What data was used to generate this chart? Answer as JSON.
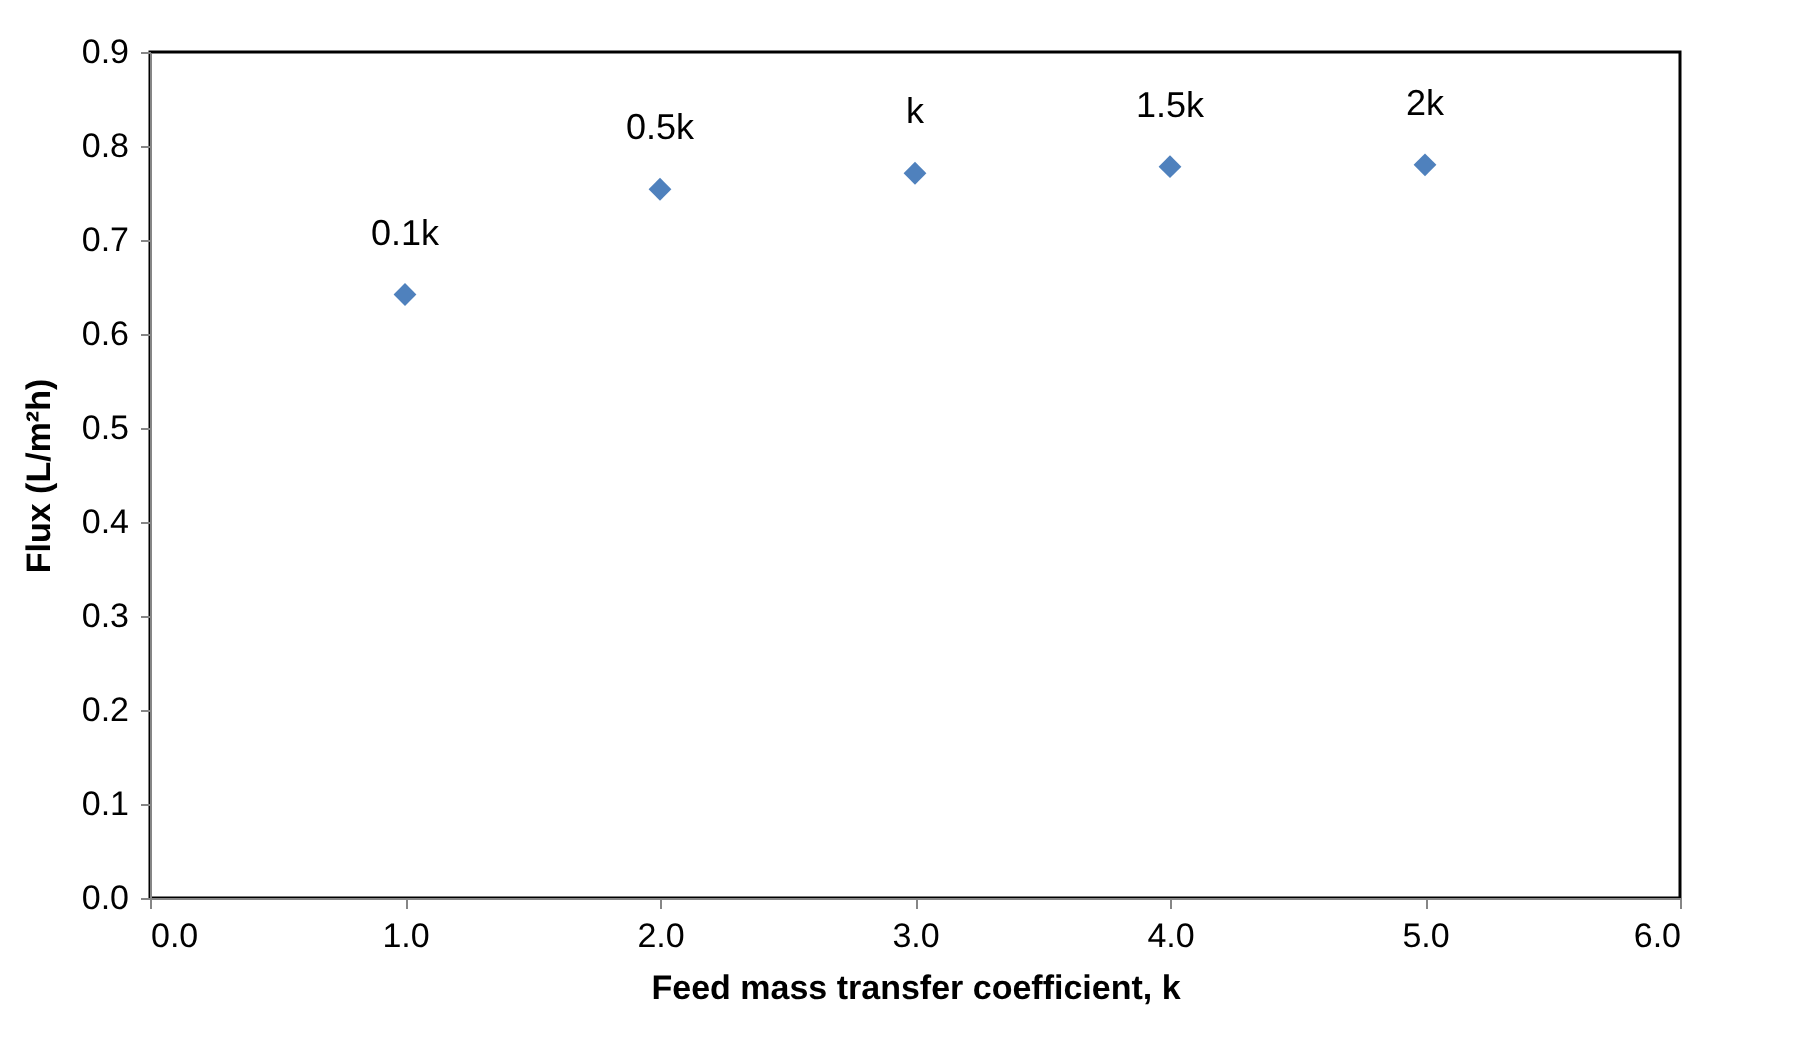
{
  "chart_data": {
    "type": "scatter",
    "xlabel": "Feed mass transfer coefficient, k",
    "ylabel": "Flux (L/m²h)",
    "x": [
      1,
      2,
      3,
      4,
      5
    ],
    "series": [
      {
        "color": "#4f81bd",
        "values": [
          0.642,
          0.754,
          0.771,
          0.778,
          0.78
        ]
      }
    ],
    "marker": "diamond",
    "grid": false,
    "xlim": [
      0,
      6
    ],
    "xticks": [
      {
        "value": 0,
        "label": "0.0"
      },
      {
        "value": 1,
        "label": "1.0"
      },
      {
        "value": 2,
        "label": "2.0"
      },
      {
        "value": 3,
        "label": "3.0"
      },
      {
        "value": 4,
        "label": "4.0"
      },
      {
        "value": 5,
        "label": "5.0"
      },
      {
        "value": 6,
        "label": "6.0"
      }
    ],
    "ylim": [
      0,
      0.9
    ],
    "yticks": [
      {
        "value": 0,
        "label": "0.0"
      },
      0.1,
      0.2,
      0.3,
      0.4,
      0.5,
      0.6,
      0.7,
      0.8,
      0.9
    ],
    "annotations": [
      {
        "text": "0.1k",
        "x": 1,
        "y": 0.642
      },
      {
        "text": "0.5k",
        "x": 2,
        "y": 0.754
      },
      {
        "text": "k",
        "x": 3,
        "y": 0.771
      },
      {
        "text": "1.5k",
        "x": 4,
        "y": 0.778
      },
      {
        "text": "2k",
        "x": 5,
        "y": 0.78
      }
    ]
  }
}
